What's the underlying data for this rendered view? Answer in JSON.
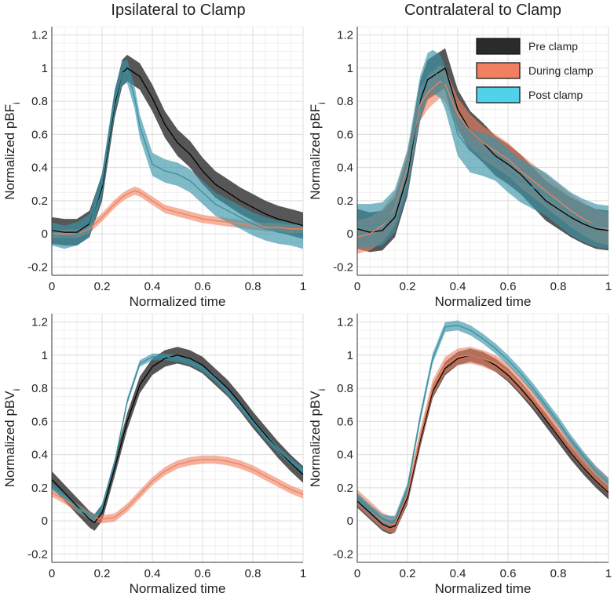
{
  "column_titles": [
    "Ipsilateral to Clamp",
    "Contralateral to Clamp"
  ],
  "legend": {
    "entries": [
      {
        "name": "Pre clamp",
        "color": "#2b2b2b"
      },
      {
        "name": "During clamp",
        "color": "#f08060"
      },
      {
        "name": "Post clamp",
        "color": "#4fd2ea"
      }
    ]
  },
  "line_colors": {
    "Pre clamp": "#000000",
    "During clamp": "#f08060",
    "Post clamp": "#3a8fa0"
  },
  "chart_data": [
    {
      "id": "ipsi-pbf",
      "type": "line",
      "title": "Ipsilateral to Clamp",
      "xlabel": "Normalized time",
      "ylabel": "Normalized pBF",
      "ylabel_sub": "i",
      "xlim": [
        0,
        1
      ],
      "ylim": [
        -0.25,
        1.25
      ],
      "xticks": [
        0,
        0.2,
        0.4,
        0.6,
        0.8,
        1
      ],
      "xtick_labels": [
        "0",
        "0.2",
        "0.4",
        "0.6",
        "0.8",
        "1"
      ],
      "yticks": [
        -0.2,
        0,
        0.2,
        0.4,
        0.6,
        0.8,
        1,
        1.2
      ],
      "ytick_labels": [
        "-0.2",
        "0",
        "0.2",
        "0.4",
        "0.6",
        "0.8",
        "1",
        "1.2"
      ],
      "grid": true,
      "x": [
        0,
        0.05,
        0.1,
        0.15,
        0.2,
        0.25,
        0.28,
        0.3,
        0.33,
        0.35,
        0.4,
        0.45,
        0.5,
        0.55,
        0.6,
        0.65,
        0.7,
        0.75,
        0.8,
        0.85,
        0.9,
        0.95,
        1
      ],
      "series": [
        {
          "name": "Pre clamp",
          "values": [
            0.02,
            0.01,
            0.01,
            0.06,
            0.28,
            0.78,
            0.97,
            1.0,
            0.97,
            0.95,
            0.82,
            0.66,
            0.55,
            0.48,
            0.38,
            0.3,
            0.25,
            0.2,
            0.16,
            0.12,
            0.09,
            0.07,
            0.05
          ],
          "band": 0.08
        },
        {
          "name": "During clamp",
          "values": [
            0.0,
            0.0,
            0.0,
            0.03,
            0.1,
            0.18,
            0.22,
            0.24,
            0.26,
            0.25,
            0.2,
            0.15,
            0.13,
            0.11,
            0.09,
            0.08,
            0.07,
            0.06,
            0.05,
            0.04,
            0.04,
            0.03,
            0.03
          ],
          "band": 0.025
        },
        {
          "name": "Post clamp",
          "values": [
            0.0,
            -0.02,
            0.0,
            0.05,
            0.3,
            0.8,
            0.97,
            0.98,
            0.82,
            0.65,
            0.42,
            0.38,
            0.36,
            0.32,
            0.25,
            0.18,
            0.14,
            0.1,
            0.06,
            0.03,
            0.01,
            0.0,
            -0.02
          ],
          "band": 0.07
        }
      ]
    },
    {
      "id": "contra-pbf",
      "type": "line",
      "title": "Contralateral to Clamp",
      "xlabel": "Normalized time",
      "ylabel": "Normalized pBF",
      "ylabel_sub": "i",
      "xlim": [
        0,
        1
      ],
      "ylim": [
        -0.25,
        1.25
      ],
      "xticks": [
        0,
        0.2,
        0.4,
        0.6,
        0.8,
        1
      ],
      "xtick_labels": [
        "0",
        "0.2",
        "0.4",
        "0.6",
        "0.8",
        "1"
      ],
      "yticks": [
        -0.2,
        0,
        0.2,
        0.4,
        0.6,
        0.8,
        1,
        1.2
      ],
      "ytick_labels": [
        "-0.2",
        "0",
        "0.2",
        "0.4",
        "0.6",
        "0.8",
        "1",
        "1.2"
      ],
      "grid": true,
      "x": [
        0,
        0.05,
        0.1,
        0.15,
        0.2,
        0.25,
        0.28,
        0.3,
        0.33,
        0.35,
        0.4,
        0.45,
        0.5,
        0.55,
        0.6,
        0.65,
        0.7,
        0.75,
        0.8,
        0.85,
        0.9,
        0.95,
        1
      ],
      "series": [
        {
          "name": "Pre clamp",
          "values": [
            0.03,
            0.01,
            0.02,
            0.1,
            0.35,
            0.8,
            0.93,
            0.95,
            0.98,
            1.0,
            0.75,
            0.62,
            0.55,
            0.47,
            0.42,
            0.36,
            0.28,
            0.2,
            0.15,
            0.1,
            0.06,
            0.03,
            0.02
          ],
          "band": 0.12
        },
        {
          "name": "During clamp",
          "values": [
            -0.02,
            0.0,
            0.05,
            0.15,
            0.4,
            0.78,
            0.85,
            0.88,
            0.92,
            0.9,
            0.72,
            0.62,
            0.55,
            0.5,
            0.45,
            0.38,
            0.32,
            0.26,
            0.2,
            0.14,
            0.09,
            0.05,
            0.03
          ],
          "band": 0.1
        },
        {
          "name": "Post clamp",
          "values": [
            0.05,
            0.05,
            0.06,
            0.14,
            0.38,
            0.82,
            0.96,
            0.98,
            0.95,
            0.88,
            0.6,
            0.5,
            0.48,
            0.45,
            0.38,
            0.32,
            0.28,
            0.24,
            0.18,
            0.12,
            0.08,
            0.05,
            0.04
          ],
          "band": 0.13
        }
      ]
    },
    {
      "id": "ipsi-pbv",
      "type": "line",
      "xlabel": "Normalized time",
      "ylabel": "Normalized pBV",
      "ylabel_sub": "i",
      "xlim": [
        0,
        1
      ],
      "ylim": [
        -0.25,
        1.25
      ],
      "xticks": [
        0,
        0.2,
        0.4,
        0.6,
        0.8,
        1
      ],
      "xtick_labels": [
        "0",
        "0.2",
        "0.4",
        "0.6",
        "0.8",
        "1"
      ],
      "yticks": [
        -0.2,
        0,
        0.2,
        0.4,
        0.6,
        0.8,
        1,
        1.2
      ],
      "ytick_labels": [
        "-0.2",
        "0",
        "0.2",
        "0.4",
        "0.6",
        "0.8",
        "1",
        "1.2"
      ],
      "grid": true,
      "x": [
        0,
        0.05,
        0.1,
        0.15,
        0.17,
        0.2,
        0.25,
        0.3,
        0.35,
        0.4,
        0.45,
        0.5,
        0.55,
        0.6,
        0.65,
        0.7,
        0.75,
        0.8,
        0.85,
        0.9,
        0.95,
        1
      ],
      "series": [
        {
          "name": "Pre clamp",
          "values": [
            0.25,
            0.17,
            0.09,
            0.01,
            -0.01,
            0.05,
            0.32,
            0.6,
            0.82,
            0.93,
            0.98,
            1.0,
            0.98,
            0.94,
            0.87,
            0.8,
            0.71,
            0.61,
            0.52,
            0.43,
            0.35,
            0.28
          ],
          "band": 0.05
        },
        {
          "name": "During clamp",
          "values": [
            0.17,
            0.13,
            0.08,
            0.03,
            0.02,
            0.01,
            0.02,
            0.08,
            0.16,
            0.24,
            0.3,
            0.34,
            0.36,
            0.37,
            0.37,
            0.36,
            0.34,
            0.31,
            0.27,
            0.23,
            0.19,
            0.16
          ],
          "band": 0.025
        },
        {
          "name": "Post clamp",
          "values": [
            0.21,
            0.15,
            0.08,
            0.03,
            0.02,
            0.08,
            0.35,
            0.72,
            0.95,
            0.99,
            0.99,
            0.98,
            0.96,
            0.92,
            0.86,
            0.78,
            0.69,
            0.6,
            0.51,
            0.43,
            0.36,
            0.3
          ],
          "band": 0.02
        }
      ]
    },
    {
      "id": "contra-pbv",
      "type": "line",
      "xlabel": "Normalized time",
      "ylabel": "Normalized pBV",
      "ylabel_sub": "i",
      "xlim": [
        0,
        1
      ],
      "ylim": [
        -0.25,
        1.25
      ],
      "xticks": [
        0,
        0.2,
        0.4,
        0.6,
        0.8,
        1
      ],
      "xtick_labels": [
        "0",
        "0.2",
        "0.4",
        "0.6",
        "0.8",
        "1"
      ],
      "yticks": [
        -0.2,
        0,
        0.2,
        0.4,
        0.6,
        0.8,
        1,
        1.2
      ],
      "ytick_labels": [
        "-0.2",
        "0",
        "0.2",
        "0.4",
        "0.6",
        "0.8",
        "1",
        "1.2"
      ],
      "grid": true,
      "x": [
        0,
        0.05,
        0.1,
        0.13,
        0.15,
        0.2,
        0.25,
        0.3,
        0.35,
        0.4,
        0.45,
        0.5,
        0.55,
        0.6,
        0.65,
        0.7,
        0.75,
        0.8,
        0.85,
        0.9,
        0.95,
        1
      ],
      "series": [
        {
          "name": "Pre clamp",
          "values": [
            0.12,
            0.05,
            -0.02,
            -0.04,
            -0.03,
            0.14,
            0.48,
            0.78,
            0.92,
            0.98,
            1.0,
            0.98,
            0.94,
            0.88,
            0.8,
            0.71,
            0.61,
            0.51,
            0.41,
            0.32,
            0.24,
            0.17
          ],
          "band": 0.04
        },
        {
          "name": "During clamp",
          "values": [
            0.14,
            0.07,
            0.0,
            -0.02,
            -0.02,
            0.16,
            0.5,
            0.8,
            0.94,
            0.99,
            1.0,
            0.98,
            0.95,
            0.9,
            0.82,
            0.74,
            0.65,
            0.55,
            0.45,
            0.36,
            0.28,
            0.21
          ],
          "band": 0.05
        },
        {
          "name": "Post clamp",
          "values": [
            0.14,
            0.07,
            0.01,
            0.0,
            0.0,
            0.2,
            0.62,
            0.98,
            1.17,
            1.18,
            1.15,
            1.1,
            1.04,
            0.97,
            0.89,
            0.8,
            0.7,
            0.6,
            0.49,
            0.39,
            0.3,
            0.23
          ],
          "band": 0.03
        }
      ]
    }
  ]
}
